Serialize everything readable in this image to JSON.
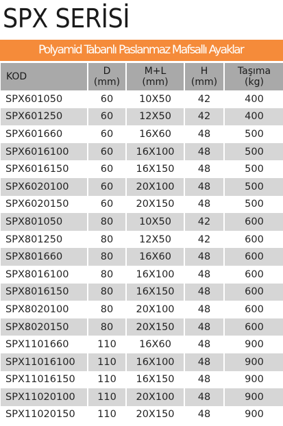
{
  "header": {
    "title": "SPX SERİSİ",
    "banner": "Polyamid Tabanlı Paslanmaz Mafsallı Ayaklar"
  },
  "table": {
    "columns": [
      {
        "name": "KOD"
      },
      {
        "name": "D",
        "unit": "(mm)"
      },
      {
        "name": "M+L",
        "unit": "(mm)"
      },
      {
        "name": "H",
        "unit": "(mm)"
      },
      {
        "name": "Taşıma",
        "unit": "(kg)"
      }
    ],
    "rows": [
      [
        "SPX601050",
        "60",
        "10X50",
        "42",
        "400"
      ],
      [
        "SPX601250",
        "60",
        "12X50",
        "42",
        "400"
      ],
      [
        "SPX601660",
        "60",
        "16X60",
        "48",
        "500"
      ],
      [
        "SPX6016100",
        "60",
        "16X100",
        "48",
        "500"
      ],
      [
        "SPX6016150",
        "60",
        "16X150",
        "48",
        "500"
      ],
      [
        "SPX6020100",
        "60",
        "20X100",
        "48",
        "500"
      ],
      [
        "SPX6020150",
        "60",
        "20X150",
        "48",
        "500"
      ],
      [
        "SPX801050",
        "80",
        "10X50",
        "42",
        "600"
      ],
      [
        "SPX801250",
        "80",
        "12X50",
        "42",
        "600"
      ],
      [
        "SPX801660",
        "80",
        "16X60",
        "48",
        "600"
      ],
      [
        "SPX8016100",
        "80",
        "16X100",
        "48",
        "600"
      ],
      [
        "SPX8016150",
        "80",
        "16X150",
        "48",
        "600"
      ],
      [
        "SPX8020100",
        "80",
        "20X100",
        "48",
        "600"
      ],
      [
        "SPX8020150",
        "80",
        "20X150",
        "48",
        "600"
      ],
      [
        "SPX1101660",
        "110",
        "16X60",
        "48",
        "900"
      ],
      [
        "SPX11016100",
        "110",
        "16X100",
        "48",
        "900"
      ],
      [
        "SPX11016150",
        "110",
        "16X150",
        "48",
        "900"
      ],
      [
        "SPX11020100",
        "110",
        "20X100",
        "48",
        "900"
      ],
      [
        "SPX11020150",
        "110",
        "20X150",
        "48",
        "900"
      ]
    ]
  }
}
